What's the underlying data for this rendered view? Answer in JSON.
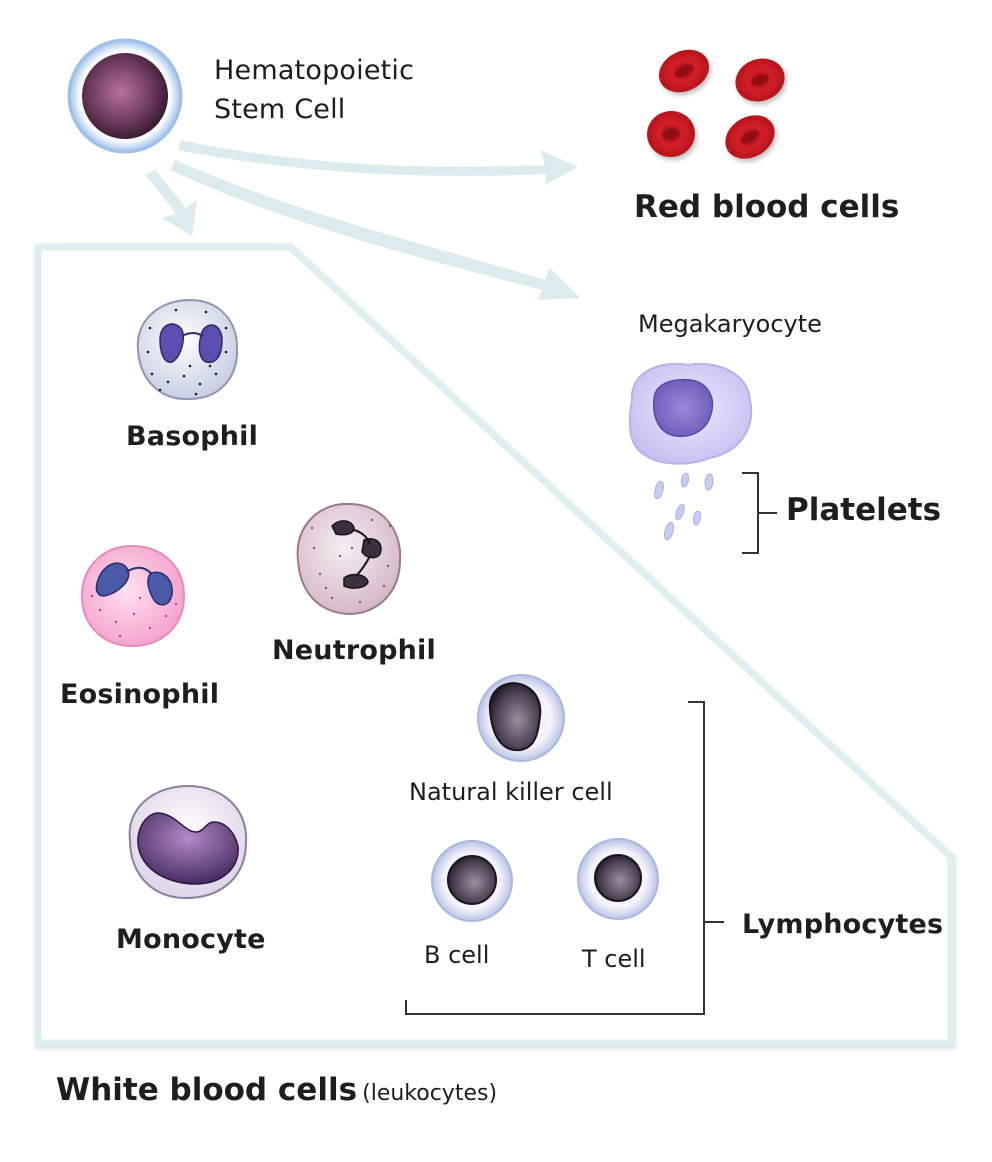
{
  "labels": {
    "stem_cell": "Hematopoietic",
    "stem_cell_2": "Stem Cell",
    "red_blood_cells": "Red blood cells",
    "megakaryocyte": "Megakaryocyte",
    "platelets": "Platelets",
    "basophil": "Basophil",
    "eosinophil": "Eosinophil",
    "neutrophil": "Neutrophil",
    "monocyte": "Monocyte",
    "nk_cell": "Natural killer cell",
    "b_cell": "B cell",
    "t_cell": "T cell",
    "lymphocytes": "Lymphocytes",
    "white_blood_cells": "White blood cells",
    "leukocytes": "(leukocytes)"
  },
  "colors": {
    "panel_border": "#dfeef0",
    "arrow": "#dcebee",
    "rbc": "#c3161c",
    "stem_nucleus": "#7a3a6a",
    "stem_membrane": "#a9c8ee",
    "megakaryocyte": "#c8c4f2",
    "eosinophil": "#f6b6d8",
    "basophil": "#dfe3ef",
    "neutrophil": "#e2cbd4",
    "lymph_nucleus": "#3d3444"
  }
}
